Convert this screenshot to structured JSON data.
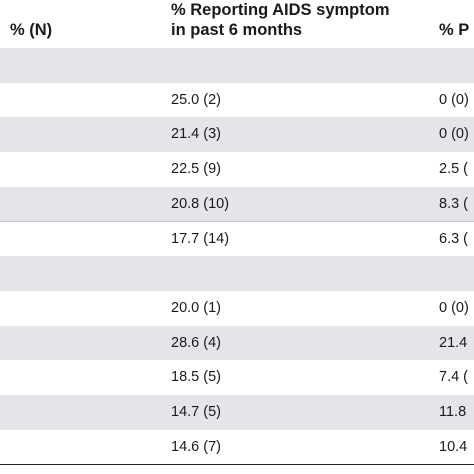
{
  "header": {
    "col1": "% (N)",
    "col2_line1": "% Reporting AIDS symptom",
    "col2_line2": "in past 6 months",
    "col3": "% P"
  },
  "rows": [
    {
      "shaded": true,
      "c2": "",
      "c3": ""
    },
    {
      "shaded": false,
      "c2": "25.0 (2)",
      "c3": "0 (0)"
    },
    {
      "shaded": true,
      "c2": "21.4 (3)",
      "c3": "0 (0)"
    },
    {
      "shaded": false,
      "c2": "22.5 (9)",
      "c3": "2.5 ("
    },
    {
      "shaded": true,
      "c2": "20.8 (10)",
      "c3": "8.3 ("
    },
    {
      "shaded": false,
      "c2": "17.7 (14)",
      "c3": "6.3 ("
    },
    {
      "shaded": true,
      "c2": "",
      "c3": ""
    },
    {
      "shaded": false,
      "c2": "20.0 (1)",
      "c3": "0 (0)"
    },
    {
      "shaded": true,
      "c2": "28.6 (4)",
      "c3": "21.4"
    },
    {
      "shaded": false,
      "c2": "18.5 (5)",
      "c3": "7.4 ("
    },
    {
      "shaded": true,
      "c2": "14.7 (5)",
      "c3": "11.8"
    },
    {
      "shaded": false,
      "c2": "14.6 (7)",
      "c3": "10.4"
    }
  ]
}
